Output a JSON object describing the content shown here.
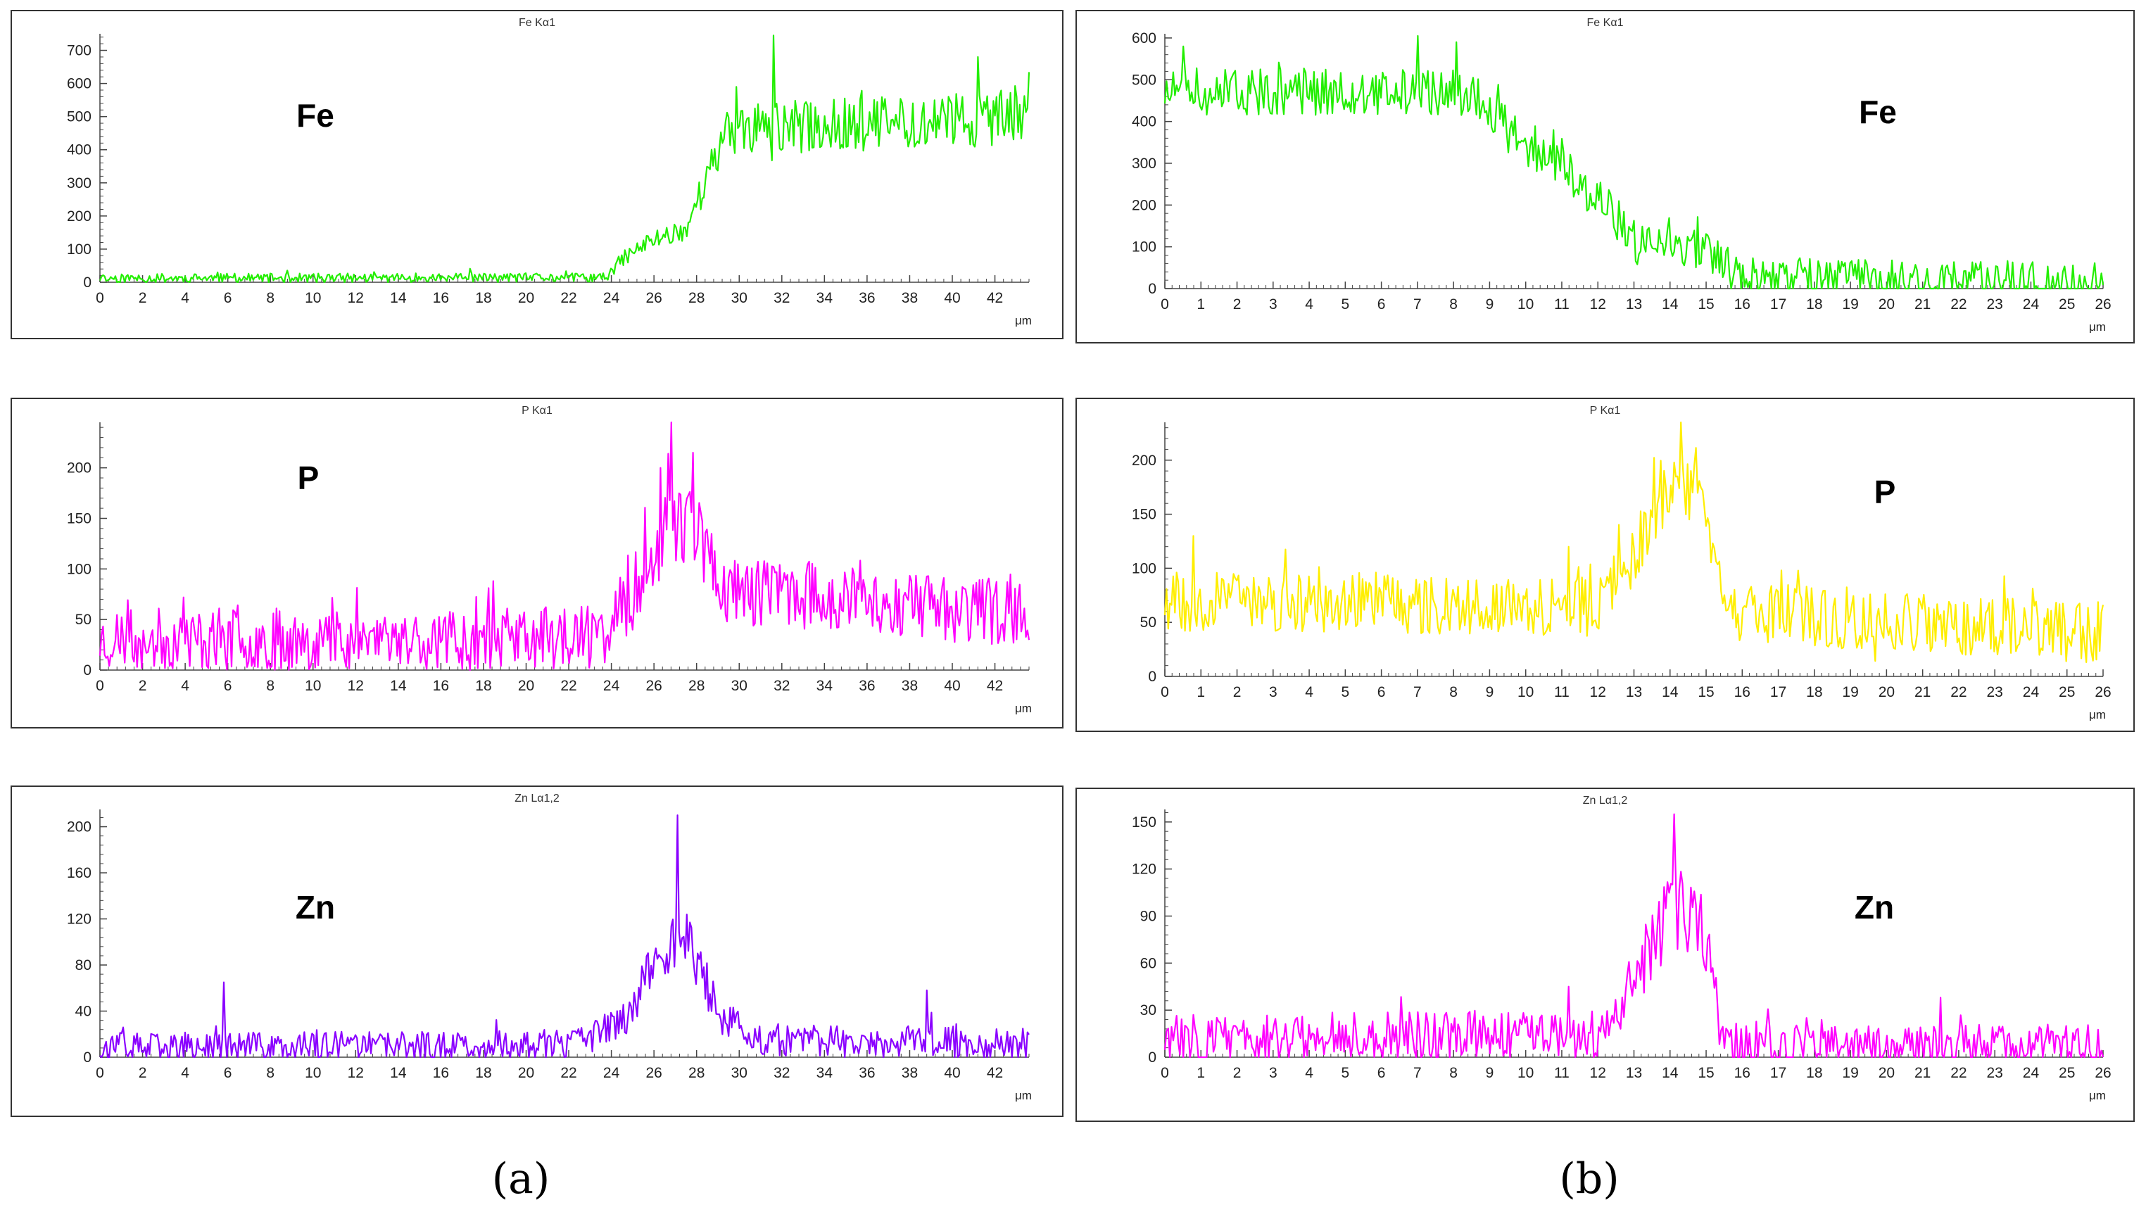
{
  "captions": {
    "a": "(a)",
    "b": "(b)"
  },
  "chart_data": [
    {
      "id": "a-fe",
      "type": "line",
      "title": "Fe Kα1",
      "element_label": "Fe",
      "color": "#22ee00",
      "xlabel": "μm",
      "xlim": [
        0,
        43.6
      ],
      "ylim": [
        0,
        750
      ],
      "xticks": [
        0,
        2,
        4,
        6,
        8,
        10,
        12,
        14,
        16,
        18,
        20,
        22,
        24,
        26,
        28,
        30,
        32,
        34,
        36,
        38,
        40,
        42
      ],
      "yticks": [
        0,
        100,
        200,
        300,
        400,
        500,
        600,
        700
      ],
      "profile": [
        [
          0,
          12
        ],
        [
          23.8,
          14
        ],
        [
          24.5,
          70
        ],
        [
          26,
          130
        ],
        [
          27.5,
          160
        ],
        [
          28.5,
          320
        ],
        [
          29.6,
          460
        ],
        [
          43.6,
          500
        ]
      ],
      "noise_amp": 12,
      "noise_amp_high": 90,
      "spikes": [
        [
          31.6,
          745
        ],
        [
          41.2,
          680
        ],
        [
          29.9,
          590
        ]
      ],
      "seed": 11,
      "n": 600
    },
    {
      "id": "a-p",
      "type": "line",
      "title": "P Kα1",
      "element_label": "P",
      "color": "#ff00ff",
      "xlabel": "μm",
      "xlim": [
        0,
        43.6
      ],
      "ylim": [
        0,
        245
      ],
      "xticks": [
        0,
        2,
        4,
        6,
        8,
        10,
        12,
        14,
        16,
        18,
        20,
        22,
        24,
        26,
        28,
        30,
        32,
        34,
        36,
        38,
        40,
        42
      ],
      "yticks": [
        0,
        50,
        100,
        150,
        200
      ],
      "profile": [
        [
          0,
          30
        ],
        [
          23.5,
          32
        ],
        [
          25,
          75
        ],
        [
          26.5,
          140
        ],
        [
          27.8,
          150
        ],
        [
          29.2,
          80
        ],
        [
          43.6,
          55
        ]
      ],
      "noise_amp": 28,
      "noise_amp_high": 45,
      "spikes": [
        [
          26.8,
          245
        ],
        [
          27.8,
          215
        ],
        [
          26.3,
          200
        ]
      ],
      "seed": 23,
      "n": 600
    },
    {
      "id": "a-zn",
      "type": "line",
      "title": "Zn Lα1,2",
      "element_label": "Zn",
      "color": "#8a00ff",
      "xlabel": "μm",
      "xlim": [
        0,
        43.6
      ],
      "ylim": [
        0,
        215
      ],
      "xticks": [
        0,
        2,
        4,
        6,
        8,
        10,
        12,
        14,
        16,
        18,
        20,
        22,
        24,
        26,
        28,
        30,
        32,
        34,
        36,
        38,
        40,
        42
      ],
      "yticks": [
        0,
        40,
        80,
        120,
        160,
        200
      ],
      "profile": [
        [
          0,
          8
        ],
        [
          22,
          10
        ],
        [
          24.5,
          30
        ],
        [
          26.2,
          90
        ],
        [
          27.5,
          105
        ],
        [
          29,
          40
        ],
        [
          30.5,
          15
        ],
        [
          43.6,
          12
        ]
      ],
      "noise_amp": 12,
      "noise_amp_high": 35,
      "spikes": [
        [
          27.1,
          210
        ],
        [
          5.8,
          65
        ],
        [
          38.8,
          58
        ]
      ],
      "seed": 37,
      "n": 600
    },
    {
      "id": "b-fe",
      "type": "line",
      "title": "Fe Kα1",
      "element_label": "Fe",
      "color": "#22ee00",
      "xlabel": "μm",
      "xlim": [
        0,
        26
      ],
      "ylim": [
        0,
        610
      ],
      "xticks": [
        0,
        1,
        2,
        3,
        4,
        5,
        6,
        7,
        8,
        9,
        10,
        11,
        12,
        13,
        14,
        15,
        16,
        17,
        18,
        19,
        20,
        21,
        22,
        23,
        24,
        25,
        26
      ],
      "yticks": [
        0,
        100,
        200,
        300,
        400,
        500,
        600
      ],
      "profile": [
        [
          0,
          470
        ],
        [
          8.5,
          470
        ],
        [
          9.5,
          380
        ],
        [
          11,
          290
        ],
        [
          12.3,
          190
        ],
        [
          13,
          110
        ],
        [
          15,
          80
        ],
        [
          16,
          20
        ],
        [
          26,
          10
        ]
      ],
      "noise_amp": 55,
      "noise_amp_high": 55,
      "spikes": [
        [
          7,
          605
        ],
        [
          8.1,
          590
        ],
        [
          0.5,
          580
        ]
      ],
      "seed": 51,
      "n": 560
    },
    {
      "id": "b-p",
      "type": "line",
      "title": "P Kα1",
      "element_label": "P",
      "color": "#ffee00",
      "xlabel": "μm",
      "xlim": [
        0,
        26
      ],
      "ylim": [
        0,
        235
      ],
      "xticks": [
        0,
        1,
        2,
        3,
        4,
        5,
        6,
        7,
        8,
        9,
        10,
        11,
        12,
        13,
        14,
        15,
        16,
        17,
        18,
        19,
        20,
        21,
        22,
        23,
        24,
        25,
        26
      ],
      "yticks": [
        0,
        50,
        100,
        150,
        200
      ],
      "profile": [
        [
          0,
          70
        ],
        [
          12,
          65
        ],
        [
          13,
          110
        ],
        [
          14,
          175
        ],
        [
          14.8,
          170
        ],
        [
          15.5,
          60
        ],
        [
          26,
          40
        ]
      ],
      "noise_amp": 28,
      "noise_amp_high": 28,
      "spikes": [
        [
          14.3,
          235
        ],
        [
          0.8,
          130
        ],
        [
          11.2,
          120
        ]
      ],
      "seed": 67,
      "n": 560
    },
    {
      "id": "b-zn",
      "type": "line",
      "title": "Zn Lα1,2",
      "element_label": "Zn",
      "color": "#ff00ff",
      "xlabel": "μm",
      "xlim": [
        0,
        26
      ],
      "ylim": [
        0,
        158
      ],
      "xticks": [
        0,
        1,
        2,
        3,
        4,
        5,
        6,
        7,
        8,
        9,
        10,
        11,
        12,
        13,
        14,
        15,
        16,
        17,
        18,
        19,
        20,
        21,
        22,
        23,
        24,
        25,
        26
      ],
      "yticks": [
        0,
        30,
        60,
        90,
        120,
        150
      ],
      "profile": [
        [
          0,
          12
        ],
        [
          12.3,
          14
        ],
        [
          13.2,
          60
        ],
        [
          14,
          95
        ],
        [
          14.9,
          85
        ],
        [
          15.4,
          20
        ],
        [
          16,
          6
        ],
        [
          26,
          6
        ]
      ],
      "noise_amp": 14,
      "noise_amp_high": 30,
      "spikes": [
        [
          14.1,
          155
        ],
        [
          21.5,
          38
        ],
        [
          11.2,
          45
        ]
      ],
      "seed": 83,
      "n": 560
    }
  ]
}
